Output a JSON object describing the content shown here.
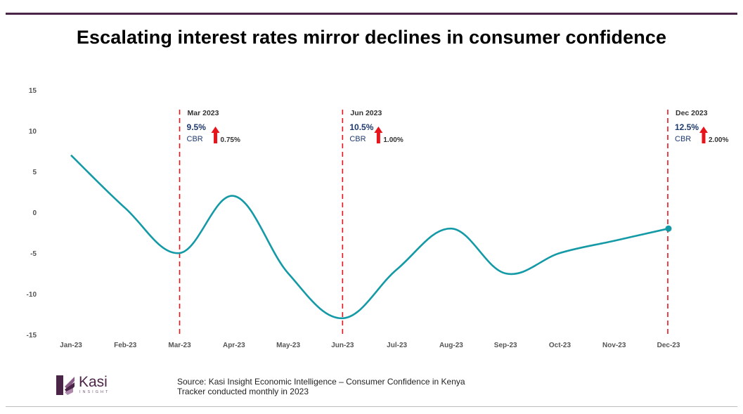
{
  "title": "Escalating interest rates mirror declines in consumer confidence",
  "chart_data": {
    "type": "line",
    "title": "Escalating interest rates mirror declines in consumer confidence",
    "xlabel": "",
    "ylabel": "",
    "categories": [
      "Jan-23",
      "Feb-23",
      "Mar-23",
      "Apr-23",
      "May-23",
      "Jun-23",
      "Jul-23",
      "Aug-23",
      "Sep-23",
      "Oct-23",
      "Nov-23",
      "Dec-23"
    ],
    "series": [
      {
        "name": "Consumer Confidence",
        "values": [
          7,
          0.5,
          -5,
          2,
          -7.5,
          -13,
          -7,
          -2,
          -7.5,
          -5,
          -3.5,
          -2
        ]
      }
    ],
    "ylim": [
      -15,
      15
    ],
    "yticks": [
      15,
      10,
      5,
      0,
      -5,
      -10,
      -15
    ],
    "grid": false,
    "line_color": "#149aa6",
    "annotations": [
      {
        "category_index": 2,
        "month": "Mar 2023",
        "rate": "9.5%",
        "cbr": "CBR",
        "change": "0.75%"
      },
      {
        "category_index": 5,
        "month": "Jun 2023",
        "rate": "10.5%",
        "cbr": "CBR",
        "change": "1.00%"
      },
      {
        "category_index": 11,
        "month": "Dec 2023",
        "rate": "12.5%",
        "cbr": "CBR",
        "change": "2.00%"
      }
    ]
  },
  "logo": {
    "name": "Kasi",
    "subtitle": "INSIGHT"
  },
  "source": {
    "line1": "Source: Kasi Insight Economic Intelligence – Consumer Confidence in Kenya",
    "line2": "Tracker conducted monthly in 2023"
  },
  "colors": {
    "accent": "#4a2547",
    "line": "#149aa6",
    "marker": "#e8141b",
    "navy": "#1f3a6e"
  }
}
